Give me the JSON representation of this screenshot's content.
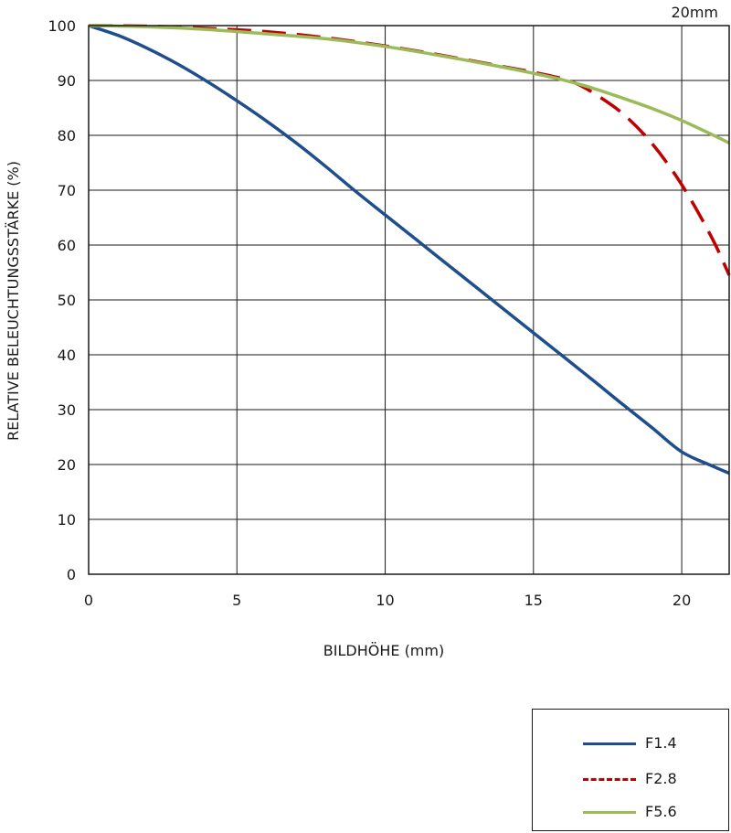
{
  "chart_data": {
    "type": "line",
    "title": "20mm",
    "xlabel": "BILDHÖHE (mm)",
    "ylabel": "RELATIVE BELEUCHTUNGSSTÄRKE (%)",
    "xlim": [
      0,
      21.6
    ],
    "ylim": [
      0,
      100
    ],
    "xticks": [
      0,
      5,
      10,
      15,
      20
    ],
    "yticks": [
      0,
      10,
      20,
      30,
      40,
      50,
      60,
      70,
      80,
      90,
      100
    ],
    "grid": true,
    "legend_position": "bottom-right",
    "series": [
      {
        "name": "F1.4",
        "color": "#1f4e8c",
        "style": "solid",
        "x": [
          0,
          1,
          2,
          3,
          4,
          5,
          6,
          7,
          8,
          9,
          10,
          11,
          12,
          13,
          14,
          15,
          16,
          17,
          18,
          19,
          20,
          21,
          21.6
        ],
        "y": [
          100,
          98.2,
          95.8,
          93.0,
          89.8,
          86.3,
          82.6,
          78.6,
          74.3,
          69.8,
          65.5,
          61.2,
          56.9,
          52.6,
          48.3,
          44.0,
          39.7,
          35.4,
          31.0,
          26.7,
          22.3,
          19.8,
          18.4
        ]
      },
      {
        "name": "F2.8",
        "color": "#c00000",
        "style": "dashed",
        "x": [
          0,
          2,
          4,
          6,
          8,
          10,
          12,
          14,
          15,
          16,
          16.5,
          17,
          18,
          19,
          20,
          21,
          21.6
        ],
        "y": [
          100,
          99.9,
          99.5,
          98.9,
          97.8,
          96.3,
          94.5,
          92.5,
          91.5,
          90.3,
          89.3,
          87.8,
          84.0,
          78.5,
          71.0,
          61.5,
          54.5
        ]
      },
      {
        "name": "F5.6",
        "color": "#9bbb59",
        "style": "solid",
        "x": [
          0,
          2,
          4,
          6,
          8,
          10,
          12,
          14,
          15,
          16,
          17,
          18,
          19,
          20,
          21,
          21.6
        ],
        "y": [
          100,
          99.8,
          99.3,
          98.5,
          97.6,
          96.2,
          94.4,
          92.4,
          91.3,
          90.1,
          88.6,
          86.8,
          84.9,
          82.7,
          80.2,
          78.6
        ]
      }
    ]
  }
}
